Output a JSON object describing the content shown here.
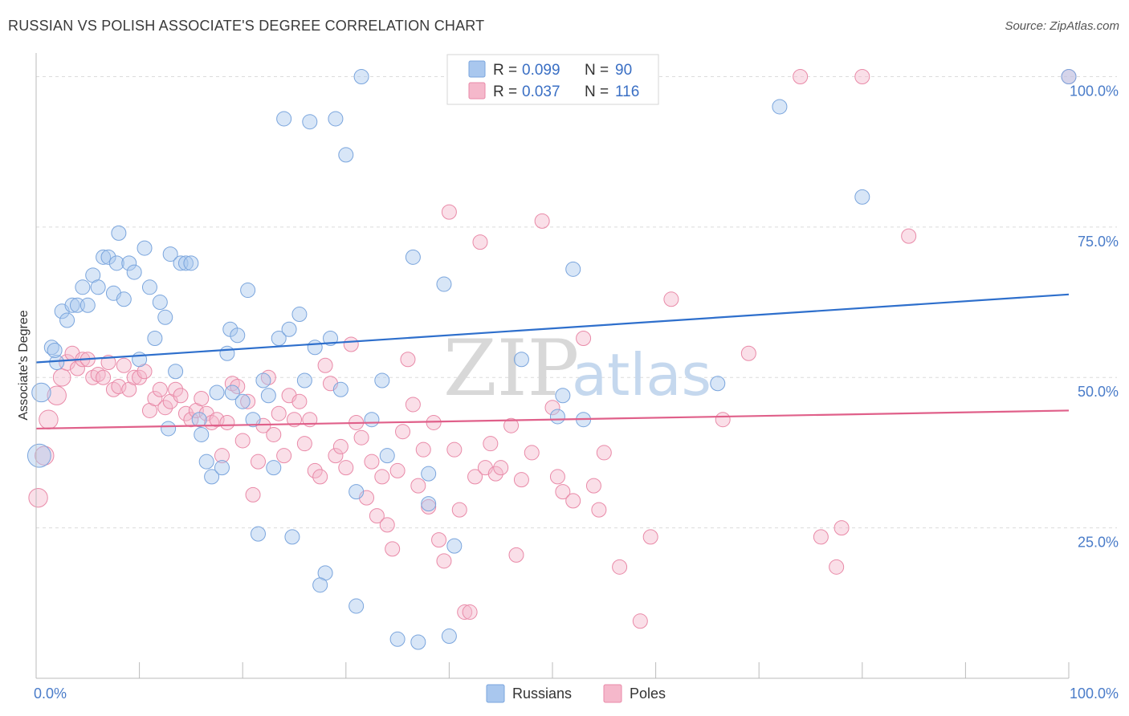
{
  "header": {
    "title": "RUSSIAN VS POLISH ASSOCIATE'S DEGREE CORRELATION CHART",
    "source": "Source: ZipAtlas.com"
  },
  "chart_data": {
    "type": "scatter",
    "ylabel": "Associate's Degree",
    "x_tick_labels": [
      "0.0%",
      "100.0%"
    ],
    "y_tick_labels": [
      "100.0%",
      "75.0%",
      "50.0%",
      "25.0%"
    ],
    "y_ticks": [
      100,
      75,
      50,
      25
    ],
    "xlim": [
      0,
      100
    ],
    "ylim": [
      0,
      105
    ],
    "grid": true,
    "watermark": [
      "ZIP",
      "atlas"
    ],
    "colors": {
      "russians": "#a9c7ee",
      "russians_edge": "#7aa5dd",
      "russians_line": "#2e6fcc",
      "poles": "#f5b8cb",
      "poles_edge": "#e98aa8",
      "poles_line": "#e0608a"
    },
    "legend": {
      "items": [
        {
          "r_label": "R =",
          "r_value": "0.099",
          "n_label": "N =",
          "n_value": "90"
        },
        {
          "r_label": "R =",
          "r_value": "0.037",
          "n_label": "N =",
          "n_value": "116"
        }
      ]
    },
    "series": [
      {
        "name": "Russians",
        "trend": [
          [
            0,
            52.5
          ],
          [
            100,
            63.8
          ]
        ],
        "points": [
          [
            0.3,
            37,
            1.6
          ],
          [
            0.5,
            47.5,
            1.3
          ],
          [
            1.5,
            55,
            1
          ],
          [
            2,
            52.5,
            1
          ],
          [
            1.8,
            54.5,
            1
          ],
          [
            2.5,
            61,
            1
          ],
          [
            3,
            59.5,
            1
          ],
          [
            3.5,
            62,
            1
          ],
          [
            4,
            62,
            1
          ],
          [
            5,
            62,
            1
          ],
          [
            4.5,
            65,
            1
          ],
          [
            5.5,
            67,
            1
          ],
          [
            6,
            65,
            1
          ],
          [
            6.5,
            70,
            1
          ],
          [
            7,
            70,
            1
          ],
          [
            7.5,
            64,
            1
          ],
          [
            7.8,
            69,
            1
          ],
          [
            8,
            74,
            1
          ],
          [
            8.5,
            63,
            1
          ],
          [
            9,
            69,
            1
          ],
          [
            9.5,
            67.5,
            1
          ],
          [
            10,
            53,
            1
          ],
          [
            10.5,
            71.5,
            1
          ],
          [
            11,
            65,
            1
          ],
          [
            11.5,
            56.5,
            1
          ],
          [
            12,
            62.5,
            1
          ],
          [
            12.5,
            60,
            1
          ],
          [
            13,
            70.5,
            1
          ],
          [
            13.5,
            51,
            1
          ],
          [
            14,
            69,
            1
          ],
          [
            14.5,
            69,
            1
          ],
          [
            15,
            69,
            1
          ],
          [
            12.8,
            41.5,
            1
          ],
          [
            15.8,
            43,
            1
          ],
          [
            16,
            40.5,
            1
          ],
          [
            16.5,
            36,
            1
          ],
          [
            17,
            33.5,
            1
          ],
          [
            17.5,
            47.5,
            1
          ],
          [
            18,
            35,
            1
          ],
          [
            18.5,
            54,
            1
          ],
          [
            18.8,
            58,
            1
          ],
          [
            19,
            47.5,
            1
          ],
          [
            19.5,
            57,
            1
          ],
          [
            20,
            46,
            1
          ],
          [
            20.5,
            64.5,
            1
          ],
          [
            21,
            43,
            1
          ],
          [
            21.5,
            24,
            1
          ],
          [
            22,
            49.5,
            1
          ],
          [
            22.5,
            47,
            1
          ],
          [
            23,
            35,
            1
          ],
          [
            23.5,
            56.5,
            1
          ],
          [
            24,
            93,
            1
          ],
          [
            24.5,
            58,
            1
          ],
          [
            24.8,
            23.5,
            1
          ],
          [
            25.5,
            60.5,
            1
          ],
          [
            26,
            49.5,
            1
          ],
          [
            26.5,
            92.5,
            1
          ],
          [
            27,
            55,
            1
          ],
          [
            28,
            17.5,
            1
          ],
          [
            28.5,
            56.5,
            1
          ],
          [
            29,
            93,
            1
          ],
          [
            29.5,
            48,
            1
          ],
          [
            30,
            87,
            1
          ],
          [
            31,
            12,
            1
          ],
          [
            31,
            31,
            1
          ],
          [
            31.5,
            100,
            1
          ],
          [
            32.5,
            43,
            1
          ],
          [
            33.5,
            49.5,
            1
          ],
          [
            34,
            37,
            1
          ],
          [
            35,
            6.5,
            1
          ],
          [
            36.5,
            70,
            1
          ],
          [
            37,
            6,
            1
          ],
          [
            38,
            29,
            1
          ],
          [
            38,
            34,
            1
          ],
          [
            39.5,
            65.5,
            1
          ],
          [
            40,
            7,
            1
          ],
          [
            40.5,
            22,
            1
          ],
          [
            47,
            53,
            1
          ],
          [
            50.5,
            43.5,
            1
          ],
          [
            51,
            47,
            1
          ],
          [
            52,
            68,
            1
          ],
          [
            53,
            43,
            1
          ],
          [
            54.5,
            97,
            1
          ],
          [
            55.5,
            100,
            1
          ],
          [
            57.5,
            100,
            1
          ],
          [
            66,
            49,
            1
          ],
          [
            72,
            95,
            1
          ],
          [
            80,
            80,
            1
          ],
          [
            100,
            100,
            1
          ],
          [
            27.5,
            15.5,
            1
          ]
        ]
      },
      {
        "name": "Poles",
        "trend": [
          [
            0,
            41.5
          ],
          [
            100,
            44.5
          ]
        ],
        "points": [
          [
            0.2,
            30,
            1.3
          ],
          [
            0.8,
            37,
            1.3
          ],
          [
            1.2,
            43,
            1.3
          ],
          [
            2,
            47,
            1.3
          ],
          [
            2.5,
            50,
            1.2
          ],
          [
            3,
            52.5,
            1.1
          ],
          [
            3.5,
            54,
            1
          ],
          [
            4,
            51.5,
            1
          ],
          [
            4.5,
            53,
            1
          ],
          [
            5,
            53,
            1
          ],
          [
            5.5,
            50,
            1
          ],
          [
            6,
            50.5,
            1
          ],
          [
            6.5,
            50,
            1
          ],
          [
            7,
            52.5,
            1
          ],
          [
            7.5,
            48,
            1
          ],
          [
            8,
            48.5,
            1
          ],
          [
            8.5,
            52,
            1
          ],
          [
            9,
            48,
            1
          ],
          [
            9.5,
            50,
            1
          ],
          [
            10,
            50,
            1
          ],
          [
            10.5,
            51,
            1
          ],
          [
            11,
            44.5,
            1
          ],
          [
            11.5,
            46.5,
            1
          ],
          [
            12,
            48,
            1
          ],
          [
            12.5,
            45,
            1
          ],
          [
            13,
            46,
            1
          ],
          [
            13.5,
            48,
            1
          ],
          [
            14,
            47,
            1
          ],
          [
            14.5,
            44,
            1
          ],
          [
            15,
            43,
            1
          ],
          [
            15.5,
            44.5,
            1
          ],
          [
            16,
            46.5,
            1
          ],
          [
            16.5,
            44,
            1
          ],
          [
            17,
            42.5,
            1
          ],
          [
            17.5,
            43,
            1
          ],
          [
            18,
            37,
            1
          ],
          [
            18.5,
            42.5,
            1
          ],
          [
            19,
            49,
            1
          ],
          [
            19.5,
            48.5,
            1
          ],
          [
            20,
            39.5,
            1
          ],
          [
            20.5,
            46,
            1
          ],
          [
            21,
            30.5,
            1
          ],
          [
            21.5,
            36,
            1
          ],
          [
            22,
            42,
            1
          ],
          [
            22.5,
            50,
            1
          ],
          [
            23,
            40.5,
            1
          ],
          [
            23.5,
            44,
            1
          ],
          [
            24,
            37,
            1
          ],
          [
            24.5,
            47,
            1
          ],
          [
            25,
            43,
            1
          ],
          [
            25.5,
            46,
            1
          ],
          [
            26,
            39,
            1
          ],
          [
            26.5,
            43,
            1
          ],
          [
            27,
            34.5,
            1
          ],
          [
            27.5,
            33.5,
            1
          ],
          [
            28,
            52,
            1
          ],
          [
            28.5,
            49,
            1
          ],
          [
            29,
            37,
            1
          ],
          [
            29.5,
            38.5,
            1
          ],
          [
            30,
            35,
            1
          ],
          [
            30.5,
            55.5,
            1
          ],
          [
            31,
            42.5,
            1
          ],
          [
            31.5,
            40,
            1
          ],
          [
            32,
            30,
            1
          ],
          [
            32.5,
            36,
            1
          ],
          [
            33,
            27,
            1
          ],
          [
            33.5,
            33.5,
            1
          ],
          [
            34,
            25.5,
            1
          ],
          [
            34.5,
            21.5,
            1
          ],
          [
            35,
            34.5,
            1
          ],
          [
            35.5,
            41,
            1
          ],
          [
            36,
            53,
            1
          ],
          [
            36.5,
            45.5,
            1
          ],
          [
            37,
            32,
            1
          ],
          [
            37.5,
            38,
            1
          ],
          [
            38,
            28.5,
            1
          ],
          [
            38.5,
            42.5,
            1
          ],
          [
            39,
            23,
            1
          ],
          [
            39.5,
            19.5,
            1
          ],
          [
            40,
            77.5,
            1
          ],
          [
            40.5,
            38,
            1
          ],
          [
            41,
            28,
            1
          ],
          [
            41.5,
            11,
            1
          ],
          [
            42,
            11,
            1
          ],
          [
            42.5,
            33.5,
            1
          ],
          [
            43,
            72.5,
            1
          ],
          [
            43.5,
            35,
            1
          ],
          [
            44,
            39,
            1
          ],
          [
            44.5,
            34,
            1
          ],
          [
            45,
            35,
            1
          ],
          [
            46,
            42,
            1
          ],
          [
            46.5,
            20.5,
            1
          ],
          [
            47,
            33,
            1
          ],
          [
            48,
            37.5,
            1
          ],
          [
            49,
            76,
            1
          ],
          [
            50,
            45,
            1
          ],
          [
            50.5,
            33.5,
            1
          ],
          [
            51,
            31,
            1
          ],
          [
            52,
            29.5,
            1
          ],
          [
            53,
            56.5,
            1
          ],
          [
            54,
            32,
            1
          ],
          [
            54.5,
            28,
            1
          ],
          [
            55,
            37.5,
            1
          ],
          [
            56.5,
            18.5,
            1
          ],
          [
            58.5,
            9.5,
            1
          ],
          [
            59.5,
            23.5,
            1
          ],
          [
            61.5,
            63,
            1
          ],
          [
            66.5,
            43,
            1
          ],
          [
            69,
            54,
            1
          ],
          [
            76,
            23.5,
            1
          ],
          [
            77.5,
            18.5,
            1
          ],
          [
            78,
            25,
            1
          ],
          [
            74,
            100,
            1
          ],
          [
            80,
            100,
            1
          ],
          [
            84.5,
            73.5,
            1
          ],
          [
            100,
            100,
            1
          ]
        ]
      }
    ]
  },
  "bottom_legend": [
    "Russians",
    "Poles"
  ]
}
